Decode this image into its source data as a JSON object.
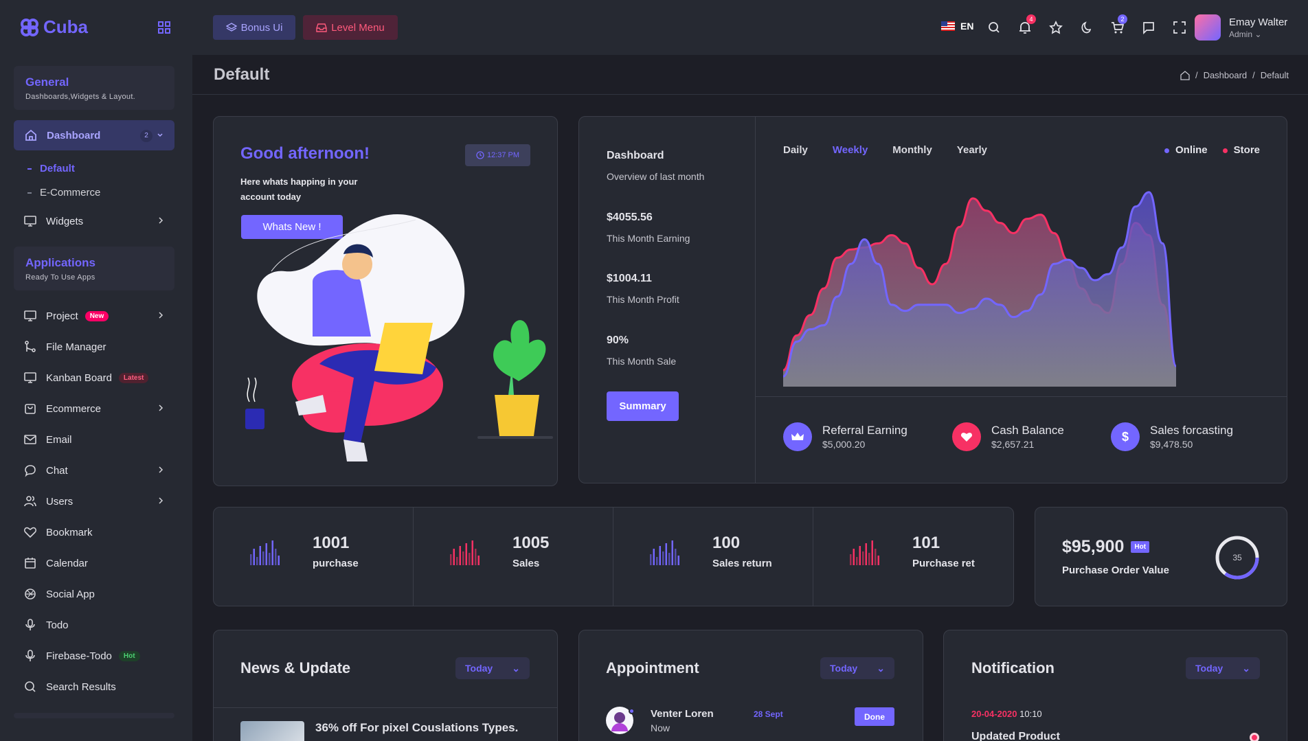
{
  "brand": {
    "name": "Cuba"
  },
  "sidebar": {
    "general": {
      "title": "General",
      "subtitle": "Dashboards,Widgets & Layout."
    },
    "dashboard": {
      "label": "Dashboard",
      "count": "2"
    },
    "sub": [
      "Default",
      "E-Commerce"
    ],
    "widgets": "Widgets",
    "applications": {
      "title": "Applications",
      "subtitle": "Ready To Use Apps"
    },
    "items": [
      {
        "label": "Project",
        "pill": "New"
      },
      {
        "label": "File Manager"
      },
      {
        "label": "Kanban Board",
        "pill": "Latest"
      },
      {
        "label": "Ecommerce"
      },
      {
        "label": "Email"
      },
      {
        "label": "Chat"
      },
      {
        "label": "Users"
      },
      {
        "label": "Bookmark"
      },
      {
        "label": "Calendar"
      },
      {
        "label": "Social App"
      },
      {
        "label": "Todo"
      },
      {
        "label": "Firebase-Todo",
        "pill": "Hot"
      },
      {
        "label": "Search Results"
      }
    ]
  },
  "topbar": {
    "bonus": "Bonus Ui",
    "level": "Level Menu",
    "lang": "EN",
    "notif_count": "4",
    "cart_count": "2",
    "user_name": "Emay Walter",
    "user_role": "Admin"
  },
  "page": {
    "title": "Default",
    "crumbs": [
      "Dashboard",
      "Default"
    ]
  },
  "greeting": {
    "title": "Good afternoon!",
    "time": "12:37 PM",
    "text": "Here whats happing in your account today",
    "button": "Whats New !"
  },
  "overview": {
    "title": "Dashboard",
    "subtitle": "Overview of last month",
    "earning": "$4055.56",
    "earning_label": "This Month Earning",
    "profit": "$1004.11",
    "profit_label": "This Month Profit",
    "sale": "90%",
    "sale_label": "This Month Sale",
    "button": "Summary",
    "tabs": [
      "Daily",
      "Weekly",
      "Monthly",
      "Yearly"
    ],
    "legend": [
      "Online",
      "Store"
    ],
    "stats": [
      {
        "title": "Referral Earning",
        "value": "$5,000.20"
      },
      {
        "title": "Cash Balance",
        "value": "$2,657.21"
      },
      {
        "title": "Sales forcasting",
        "value": "$9,478.50"
      }
    ]
  },
  "colors": {
    "accent": "#7366ff",
    "pink": "#f73164",
    "bg": "#1d1e26",
    "card": "#262932"
  },
  "chart_data": {
    "type": "area",
    "x": [
      1,
      2,
      3,
      4,
      5,
      6,
      7,
      8,
      9,
      10,
      11,
      12,
      13,
      14,
      15,
      16,
      17,
      18,
      19,
      20,
      21,
      22,
      23,
      24,
      25,
      26,
      27,
      28,
      29,
      30
    ],
    "series": [
      {
        "name": "Online",
        "values": [
          5,
          22,
          28,
          30,
          44,
          60,
          72,
          60,
          40,
          37,
          40,
          40,
          40,
          36,
          38,
          43,
          40,
          34,
          37,
          45,
          60,
          62,
          58,
          52,
          55,
          68,
          88,
          95,
          70,
          10
        ]
      },
      {
        "name": "Store",
        "values": [
          8,
          25,
          35,
          48,
          63,
          67,
          68,
          70,
          74,
          70,
          58,
          50,
          60,
          78,
          92,
          86,
          80,
          75,
          82,
          84,
          75,
          62,
          48,
          40,
          36,
          60,
          80,
          74,
          40,
          10
        ]
      }
    ]
  },
  "mini_stats": [
    {
      "value": "1001",
      "label": "purchase"
    },
    {
      "value": "1005",
      "label": "Sales"
    },
    {
      "value": "100",
      "label": "Sales return"
    },
    {
      "value": "101",
      "label": "Purchase ret"
    }
  ],
  "purchase_order": {
    "value": "$95,900",
    "badge": "Hot",
    "label": "Purchase Order Value",
    "ring": "35"
  },
  "news": {
    "title": "News & Update",
    "filter": "Today",
    "headline": "36% off For pixel Couslations Types."
  },
  "appointment": {
    "title": "Appointment",
    "filter": "Today",
    "name": "Venter Loren",
    "date": "28 Sept",
    "when": "Now",
    "status": "Done"
  },
  "notification": {
    "title": "Notification",
    "filter": "Today",
    "date": "20-04-2020",
    "time": "10:10",
    "headline": "Updated Product"
  }
}
